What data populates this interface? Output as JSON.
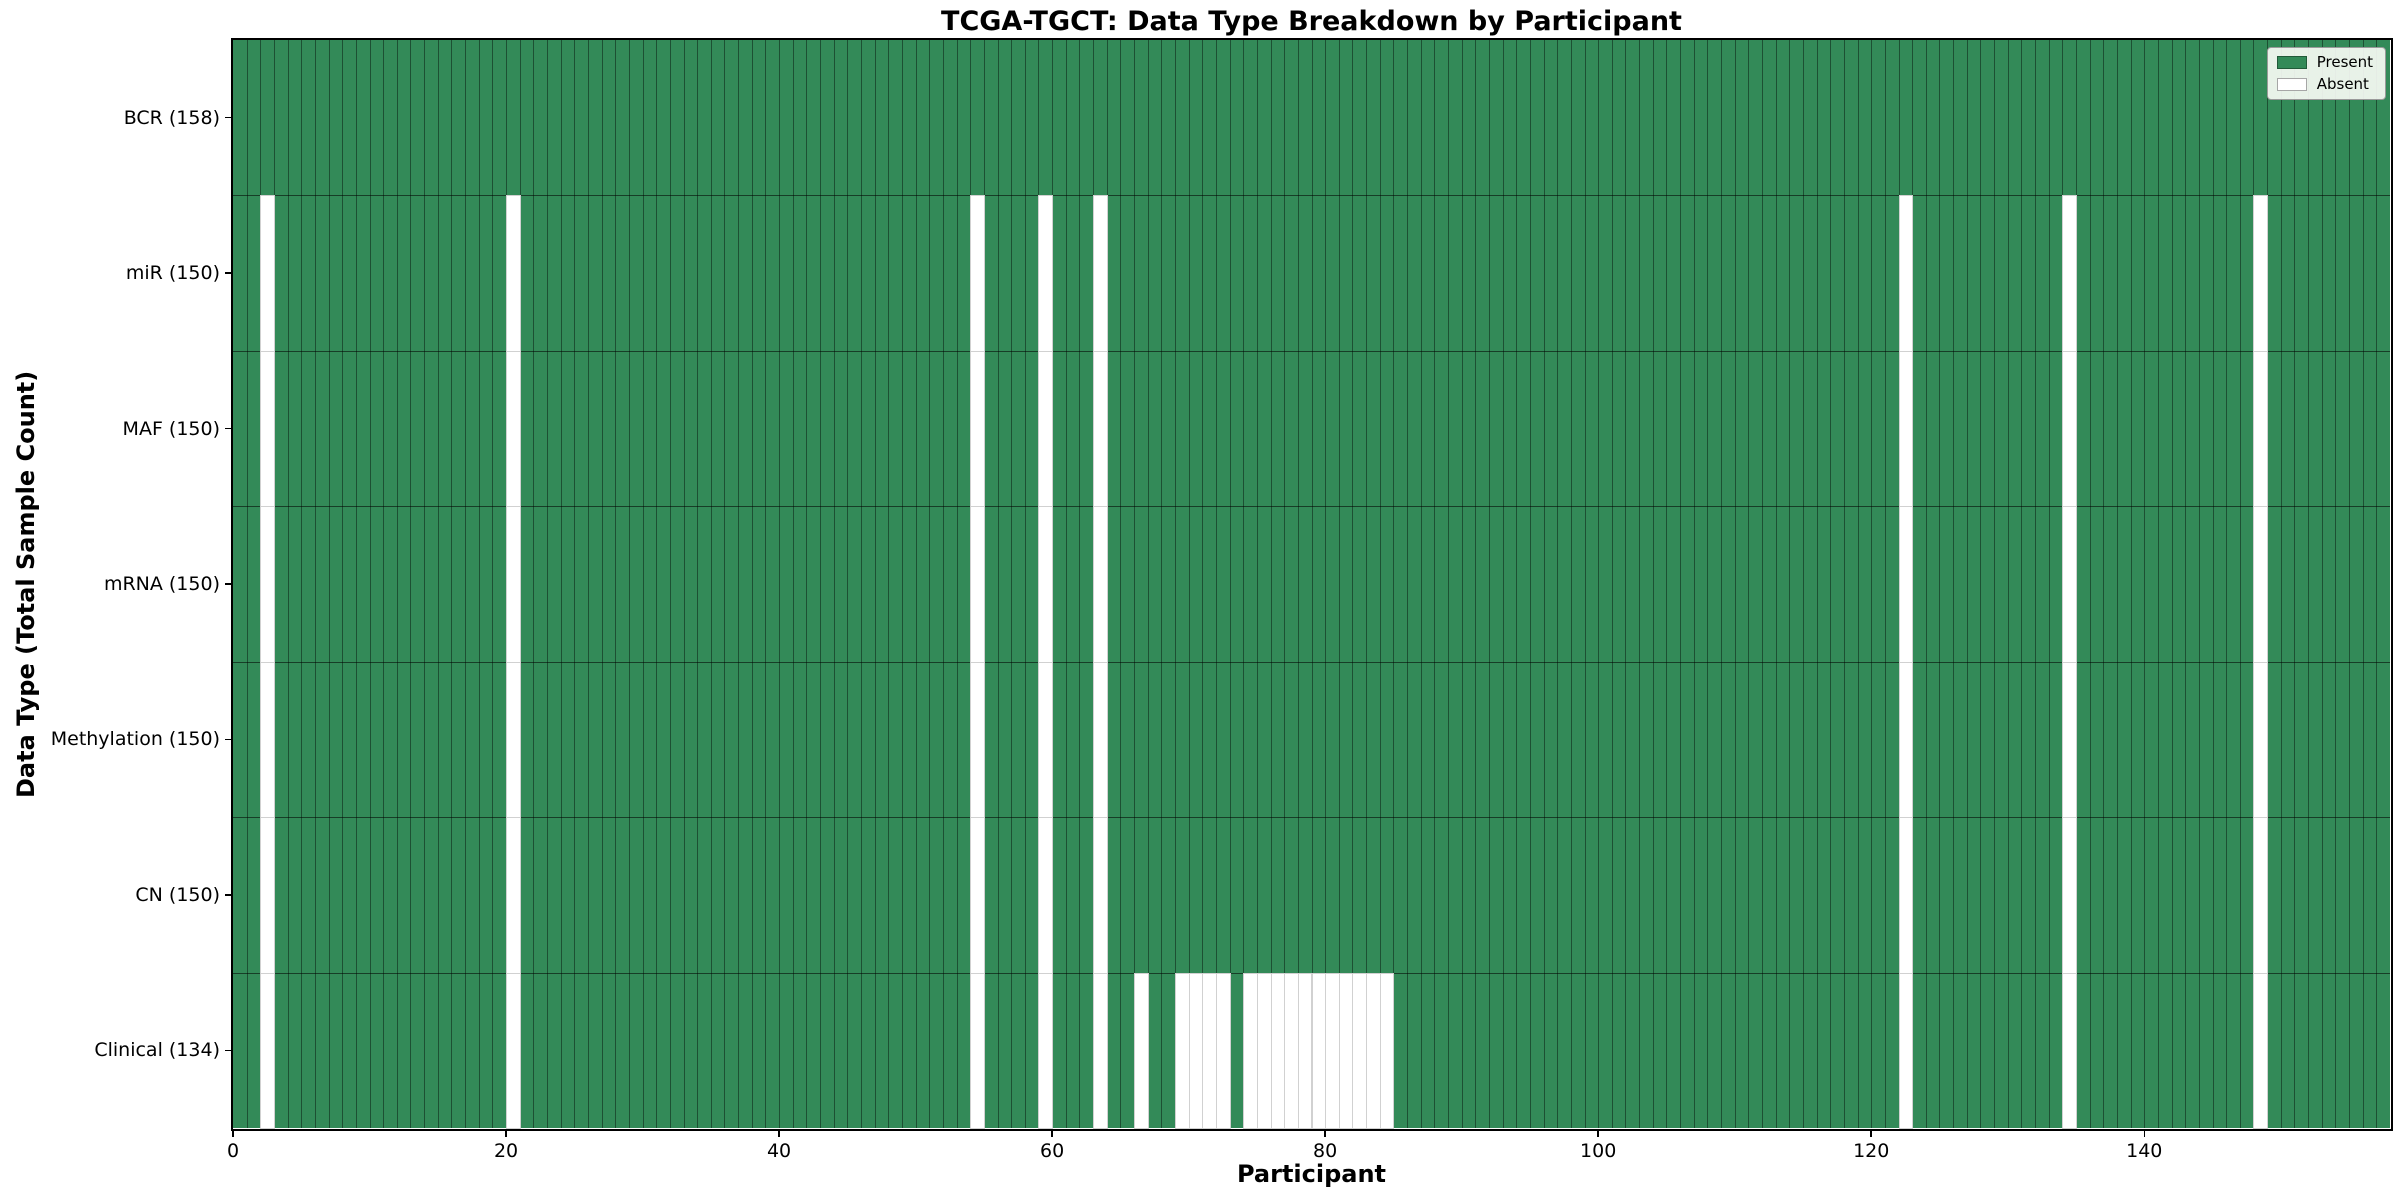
{
  "figure": {
    "title": "TCGA-TGCT: Data Type Breakdown by Participant",
    "xlabel": "Participant",
    "ylabel": "Data Type (Total Sample Count)"
  },
  "legend": {
    "items": [
      {
        "label": "Present",
        "color": "#338a58"
      },
      {
        "label": "Absent",
        "color": "#ffffff"
      }
    ]
  },
  "chart_data": {
    "type": "heatmap",
    "title": "TCGA-TGCT: Data Type Breakdown by Participant",
    "xlabel": "Participant",
    "ylabel": "Data Type (Total Sample Count)",
    "n_participants": 158,
    "x_range": [
      0,
      158
    ],
    "x_ticks": [
      0,
      20,
      40,
      60,
      80,
      100,
      120,
      140
    ],
    "legend": [
      "Present",
      "Absent"
    ],
    "legend_position": "upper right",
    "grid": true,
    "colors": {
      "present": "#338a58",
      "absent": "#ffffff"
    },
    "rows": [
      {
        "label": "BCR (158)",
        "data_type": "BCR",
        "total_samples": 158,
        "absent_participants": []
      },
      {
        "label": "miR (150)",
        "data_type": "miR",
        "total_samples": 150,
        "absent_participants": [
          2,
          20,
          54,
          59,
          63,
          122,
          134,
          148
        ]
      },
      {
        "label": "MAF (150)",
        "data_type": "MAF",
        "total_samples": 150,
        "absent_participants": [
          2,
          20,
          54,
          59,
          63,
          122,
          134,
          148
        ]
      },
      {
        "label": "mRNA (150)",
        "data_type": "mRNA",
        "total_samples": 150,
        "absent_participants": [
          2,
          20,
          54,
          59,
          63,
          122,
          134,
          148
        ]
      },
      {
        "label": "Methylation (150)",
        "data_type": "Methylation",
        "total_samples": 150,
        "absent_participants": [
          2,
          20,
          54,
          59,
          63,
          122,
          134,
          148
        ]
      },
      {
        "label": "CN (150)",
        "data_type": "CN",
        "total_samples": 150,
        "absent_participants": [
          2,
          20,
          54,
          59,
          63,
          122,
          134,
          148
        ]
      },
      {
        "label": "Clinical (134)",
        "data_type": "Clinical",
        "total_samples": 134,
        "absent_participants": [
          2,
          20,
          54,
          59,
          63,
          66,
          69,
          70,
          71,
          72,
          74,
          75,
          76,
          77,
          78,
          79,
          80,
          81,
          82,
          83,
          84,
          122,
          134,
          148
        ]
      }
    ]
  }
}
